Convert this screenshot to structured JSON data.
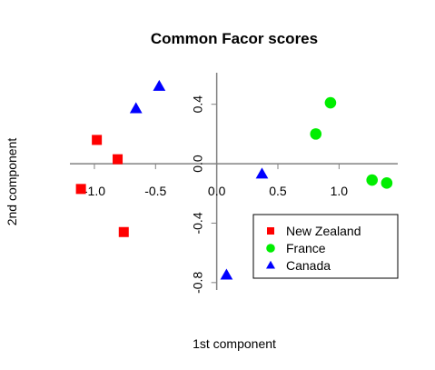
{
  "chart_data": {
    "type": "scatter",
    "title": "Common Facor scores",
    "xlabel": "1st component",
    "ylabel": "2nd component",
    "xlim": [
      -1.2,
      1.48
    ],
    "ylim": [
      -0.85,
      0.6
    ],
    "xticks": [
      {
        "value": -1.0,
        "label": "-1.0"
      },
      {
        "value": -0.5,
        "label": "-0.5"
      },
      {
        "value": 0.0,
        "label": "0.0"
      },
      {
        "value": 0.5,
        "label": "0.5"
      },
      {
        "value": 1.0,
        "label": "1.0"
      }
    ],
    "yticks": [
      {
        "value": -0.8,
        "label": "-0.8"
      },
      {
        "value": -0.4,
        "label": "-0.4"
      },
      {
        "value": 0.0,
        "label": "0.0"
      },
      {
        "value": 0.4,
        "label": "0.4"
      }
    ],
    "legend_position": "bottom-right",
    "series": [
      {
        "name": "New Zealand",
        "color": "#ff0000",
        "marker": "square",
        "points": [
          {
            "x": -0.98,
            "y": 0.16
          },
          {
            "x": -0.81,
            "y": 0.03
          },
          {
            "x": -1.11,
            "y": -0.17
          },
          {
            "x": -0.76,
            "y": -0.46
          }
        ]
      },
      {
        "name": "France",
        "color": "#00ee00",
        "marker": "circle",
        "points": [
          {
            "x": 0.93,
            "y": 0.41
          },
          {
            "x": 0.81,
            "y": 0.2
          },
          {
            "x": 1.27,
            "y": -0.11
          },
          {
            "x": 1.39,
            "y": -0.13
          }
        ]
      },
      {
        "name": "Canada",
        "color": "#0000ff",
        "marker": "triangle",
        "points": [
          {
            "x": -0.47,
            "y": 0.52
          },
          {
            "x": -0.66,
            "y": 0.37
          },
          {
            "x": 0.37,
            "y": -0.07
          },
          {
            "x": 0.08,
            "y": -0.75
          }
        ]
      }
    ]
  }
}
